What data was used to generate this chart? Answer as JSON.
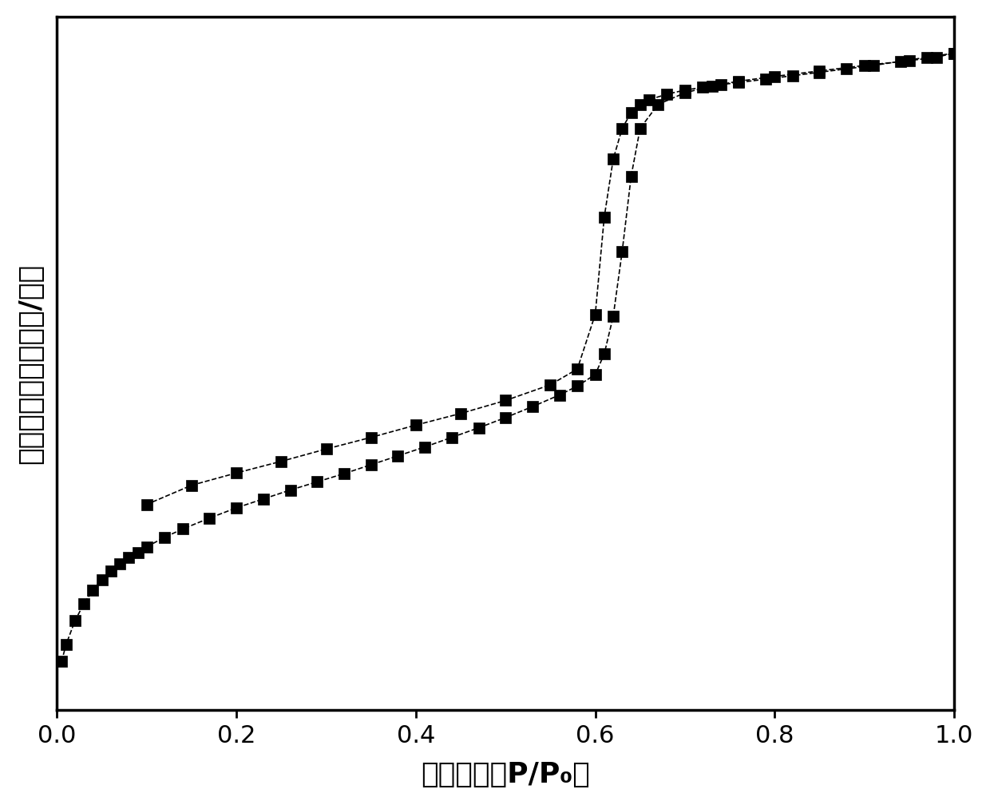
{
  "adsorption_x": [
    0.005,
    0.01,
    0.02,
    0.03,
    0.04,
    0.05,
    0.06,
    0.07,
    0.08,
    0.09,
    0.1,
    0.12,
    0.14,
    0.17,
    0.2,
    0.23,
    0.26,
    0.29,
    0.32,
    0.35,
    0.38,
    0.41,
    0.44,
    0.47,
    0.5,
    0.53,
    0.56,
    0.58,
    0.6,
    0.61,
    0.62,
    0.63,
    0.64,
    0.65,
    0.67,
    0.7,
    0.73,
    0.76,
    0.8,
    0.85,
    0.9,
    0.95,
    0.98,
    1.0
  ],
  "adsorption_y": [
    0.04,
    0.065,
    0.1,
    0.125,
    0.145,
    0.16,
    0.172,
    0.183,
    0.192,
    0.2,
    0.208,
    0.222,
    0.234,
    0.25,
    0.265,
    0.278,
    0.291,
    0.303,
    0.315,
    0.328,
    0.341,
    0.354,
    0.368,
    0.382,
    0.397,
    0.413,
    0.43,
    0.443,
    0.46,
    0.49,
    0.545,
    0.64,
    0.75,
    0.82,
    0.855,
    0.872,
    0.882,
    0.889,
    0.896,
    0.904,
    0.912,
    0.919,
    0.924,
    0.93
  ],
  "desorption_x": [
    1.0,
    0.97,
    0.94,
    0.91,
    0.88,
    0.85,
    0.82,
    0.79,
    0.76,
    0.74,
    0.72,
    0.7,
    0.68,
    0.66,
    0.65,
    0.64,
    0.63,
    0.62,
    0.61,
    0.6,
    0.58,
    0.55,
    0.5,
    0.45,
    0.4,
    0.35,
    0.3,
    0.25,
    0.2,
    0.15,
    0.1
  ],
  "desorption_y": [
    0.93,
    0.924,
    0.918,
    0.912,
    0.907,
    0.902,
    0.897,
    0.892,
    0.887,
    0.884,
    0.88,
    0.876,
    0.87,
    0.862,
    0.855,
    0.843,
    0.82,
    0.775,
    0.69,
    0.548,
    0.468,
    0.445,
    0.422,
    0.403,
    0.386,
    0.368,
    0.351,
    0.333,
    0.316,
    0.298,
    0.27
  ],
  "xlabel_plain": "P/P",
  "xlabel_sub": "0",
  "ylabel_line1": "吸附体积",
  "ylabel_line2": "（立方厘米/克）",
  "xlabel_prefix": "相对压力（",
  "xlabel_suffix": "）",
  "xlim": [
    0.0,
    1.0
  ],
  "marker": "s",
  "marker_size": 10,
  "line_color": "#000000",
  "line_style": "--",
  "background_color": "#ffffff",
  "tick_fontsize": 22,
  "label_fontsize": 26,
  "spine_linewidth": 2.5
}
